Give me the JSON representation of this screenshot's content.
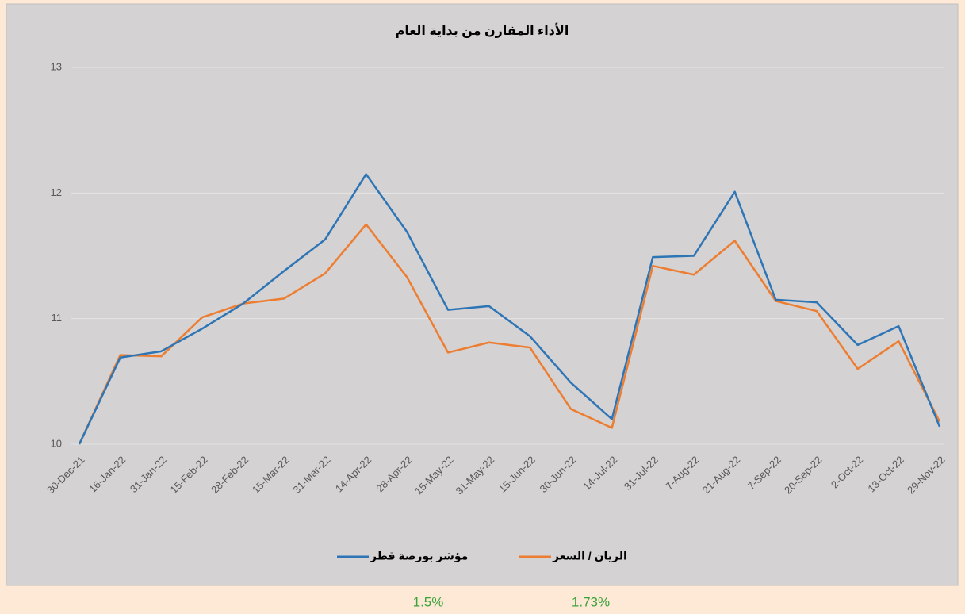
{
  "chart_data": {
    "type": "line",
    "title": "الأداء المقارن من بداية العام",
    "categories": [
      "30-Dec-21",
      "16-Jan-22",
      "31-Jan-22",
      "15-Feb-22",
      "28-Feb-22",
      "15-Mar-22",
      "31-Mar-22",
      "14-Apr-22",
      "28-Apr-22",
      "15-May-22",
      "31-May-22",
      "15-Jun-22",
      "30-Jun-22",
      "14-Jul-22",
      "31-Jul-22",
      "7-Aug-22",
      "21-Aug-22",
      "7-Sep-22",
      "20-Sep-22",
      "2-Oct-22",
      "13-Oct-22",
      "29-Nov-22"
    ],
    "series": [
      {
        "name": "مؤشر بورصة قطر",
        "color": "#2e75b6",
        "values": [
          10.0,
          10.69,
          10.74,
          10.92,
          11.12,
          11.38,
          11.63,
          12.15,
          11.69,
          11.07,
          11.1,
          10.86,
          10.49,
          10.2,
          11.49,
          11.5,
          12.01,
          11.15,
          11.13,
          10.79,
          10.94,
          10.14
        ]
      },
      {
        "name": "الريان / السعر",
        "color": "#ed7d31",
        "values": [
          10.0,
          10.71,
          10.7,
          11.01,
          11.12,
          11.16,
          11.36,
          11.75,
          11.33,
          10.73,
          10.81,
          10.77,
          10.28,
          10.13,
          11.42,
          11.35,
          11.62,
          11.14,
          11.06,
          10.6,
          10.82,
          10.18
        ]
      }
    ],
    "ylim": [
      10,
      13
    ],
    "yticks": [
      10,
      11,
      12,
      13
    ],
    "grid": true,
    "legend": "bottom"
  },
  "footer_values": [
    "1.5%",
    "1.73%"
  ]
}
